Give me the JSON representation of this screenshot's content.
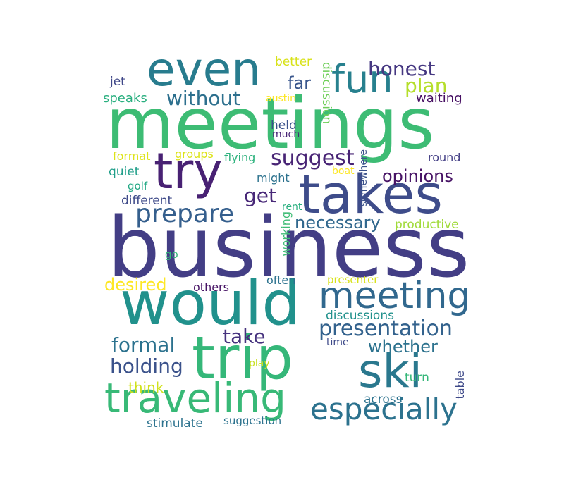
{
  "wordcloud": {
    "words": [
      {
        "text": "business",
        "color": "#433e85"
      },
      {
        "text": "meetings",
        "color": "#3dbc74"
      },
      {
        "text": "would",
        "color": "#21918c"
      },
      {
        "text": "trip",
        "color": "#35b779"
      },
      {
        "text": "takes",
        "color": "#3e4c8a"
      },
      {
        "text": "even",
        "color": "#287c8e"
      },
      {
        "text": "try",
        "color": "#482173"
      },
      {
        "text": "ski",
        "color": "#2a788e"
      },
      {
        "text": "traveling",
        "color": "#38b977"
      },
      {
        "text": "fun",
        "color": "#27808e"
      },
      {
        "text": "meeting",
        "color": "#31688e"
      },
      {
        "text": "especially",
        "color": "#2c728e"
      },
      {
        "text": "prepare",
        "color": "#355f8d"
      },
      {
        "text": "presentation",
        "color": "#33628d"
      },
      {
        "text": "suggest",
        "color": "#482475"
      },
      {
        "text": "honest",
        "color": "#453781"
      },
      {
        "text": "without",
        "color": "#2d708e"
      },
      {
        "text": "plan",
        "color": "#b5de2b"
      },
      {
        "text": "get",
        "color": "#482878"
      },
      {
        "text": "take",
        "color": "#46327e"
      },
      {
        "text": "formal",
        "color": "#2c728e"
      },
      {
        "text": "holding",
        "color": "#3b528b"
      },
      {
        "text": "whether",
        "color": "#2c728e"
      },
      {
        "text": "opinions",
        "color": "#471365"
      },
      {
        "text": "necessary",
        "color": "#31688e"
      },
      {
        "text": "far",
        "color": "#39568c"
      },
      {
        "text": "desired",
        "color": "#fde725"
      },
      {
        "text": "think",
        "color": "#d0e11c"
      },
      {
        "text": "better",
        "color": "#d8e219"
      },
      {
        "text": "waiting",
        "color": "#471063"
      },
      {
        "text": "speaks",
        "color": "#29af7f"
      },
      {
        "text": "jet",
        "color": "#3f4788"
      },
      {
        "text": "austin",
        "color": "#fde725"
      },
      {
        "text": "discussion",
        "color": "#6ece58"
      },
      {
        "text": "held",
        "color": "#3b528b"
      },
      {
        "text": "much",
        "color": "#482475"
      },
      {
        "text": "format",
        "color": "#dde318"
      },
      {
        "text": "groups",
        "color": "#dde318"
      },
      {
        "text": "flying",
        "color": "#2db27d"
      },
      {
        "text": "round",
        "color": "#433e85"
      },
      {
        "text": "somewhere",
        "color": "#3b528b"
      },
      {
        "text": "boat",
        "color": "#fde725"
      },
      {
        "text": "quiet",
        "color": "#1f9e89"
      },
      {
        "text": "might",
        "color": "#2c728e"
      },
      {
        "text": "golf",
        "color": "#22a884"
      },
      {
        "text": "different",
        "color": "#3e4a89"
      },
      {
        "text": "rent",
        "color": "#29af7f"
      },
      {
        "text": "productive",
        "color": "#a0da39"
      },
      {
        "text": "working",
        "color": "#3dbc74"
      },
      {
        "text": "go",
        "color": "#35b779"
      },
      {
        "text": "others",
        "color": "#471365"
      },
      {
        "text": "often",
        "color": "#2c728e"
      },
      {
        "text": "presenter",
        "color": "#d8e219"
      },
      {
        "text": "discussions",
        "color": "#21918c"
      },
      {
        "text": "time",
        "color": "#3e4a89"
      },
      {
        "text": "play",
        "color": "#c8e020"
      },
      {
        "text": "turn",
        "color": "#35b779"
      },
      {
        "text": "table",
        "color": "#3e4989"
      },
      {
        "text": "across",
        "color": "#2c728e"
      },
      {
        "text": "stimulate",
        "color": "#2c728e"
      },
      {
        "text": "suggestion",
        "color": "#2c728e"
      }
    ]
  }
}
